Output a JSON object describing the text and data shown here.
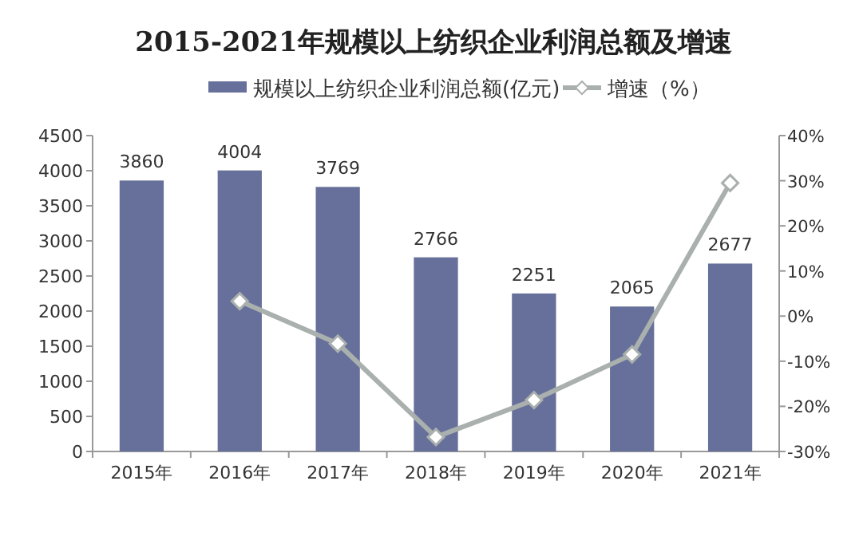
{
  "chart_data": {
    "type": "bar",
    "title": "2015-2021年规模以上纺织企业利润总额及增速",
    "categories": [
      "2015年",
      "2016年",
      "2017年",
      "2018年",
      "2019年",
      "2020年",
      "2021年"
    ],
    "series": [
      {
        "name": "规模以上纺织企业利润总额(亿元)",
        "color": "#67709a",
        "values": [
          3860,
          4004,
          3769,
          2766,
          2251,
          2065,
          2677
        ],
        "value_labels": [
          "3860",
          "4004",
          "3769",
          "2766",
          "2251",
          "2065",
          "2677"
        ]
      },
      {
        "name": "增速（%）",
        "type": "line",
        "axis": "y2",
        "color": "#a9b0ad",
        "marker": "diamond",
        "values": [
          null,
          3.3,
          -6.1,
          -26.8,
          -18.6,
          -8.5,
          29.5
        ]
      }
    ],
    "ylim": [
      0,
      4500
    ],
    "yticks": [
      0,
      500,
      1000,
      1500,
      2000,
      2500,
      3000,
      3500,
      4000,
      4500
    ],
    "y2lim": [
      -30,
      40
    ],
    "y2ticks": [
      {
        "value": -30,
        "label": "-30%"
      },
      {
        "value": -20,
        "label": "-20%"
      },
      {
        "value": -10,
        "label": "-10%"
      },
      {
        "value": 0,
        "label": "0%"
      },
      {
        "value": 10,
        "label": "10%"
      },
      {
        "value": 20,
        "label": "20%"
      },
      {
        "value": 30,
        "label": "30%"
      },
      {
        "value": 40,
        "label": "40%"
      }
    ],
    "legend": "top",
    "grid": false
  }
}
